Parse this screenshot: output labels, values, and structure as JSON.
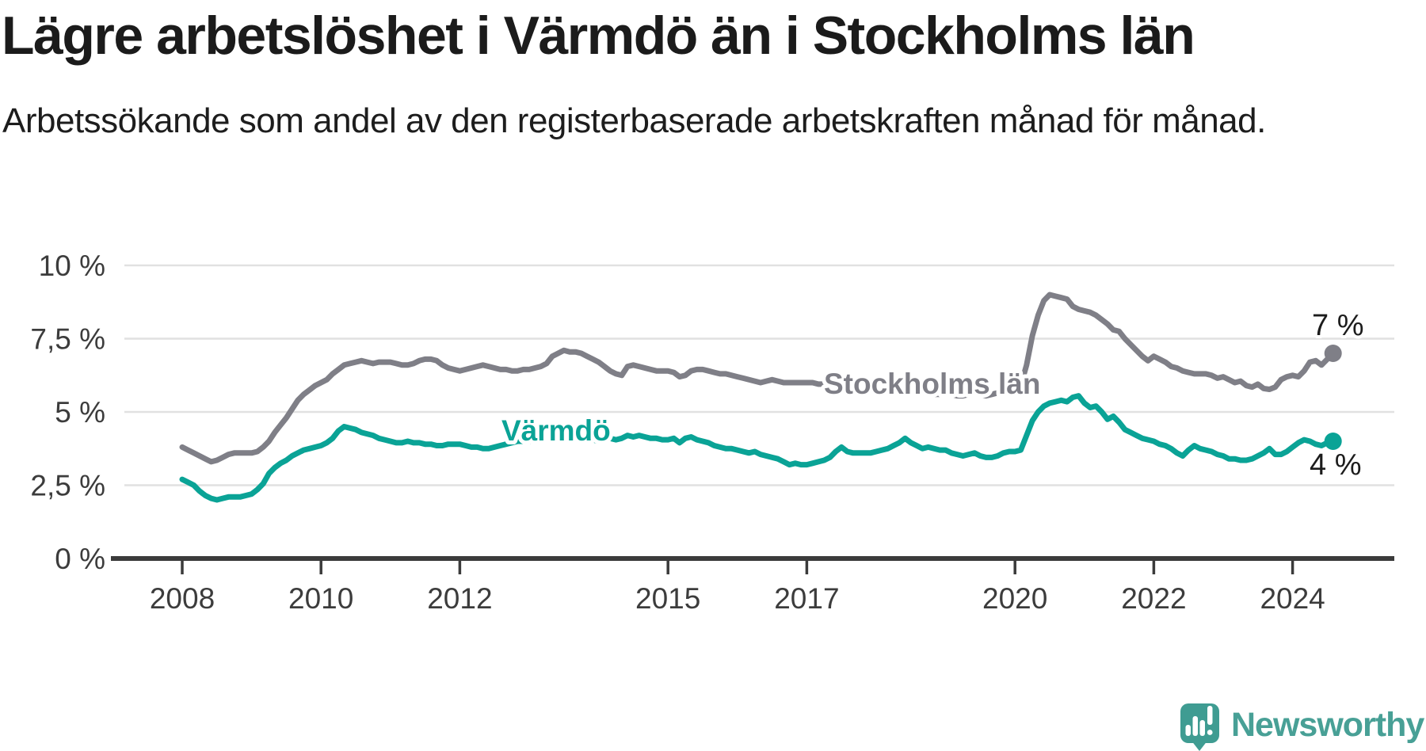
{
  "header": {
    "title": "Lägre arbetslöshet i Värmdö än i Stockholms län",
    "subtitle": "Arbetssökande som andel av den registerbaserade arbetskraften månad för månad."
  },
  "chart_data": {
    "type": "line",
    "unit": "%",
    "title": "Lägre arbetslöshet i Värmdö än i Stockholms län",
    "x_start": {
      "year": 2008,
      "month": 1
    },
    "x_end": {
      "year": 2024,
      "month": 8
    },
    "points_per_year": 12,
    "ylim": [
      0,
      10
    ],
    "grid": "horizontal",
    "legend_position": "inline-labels",
    "yticks": [
      {
        "value": 0,
        "label": "0 %"
      },
      {
        "value": 2.5,
        "label": "2,5 %"
      },
      {
        "value": 5,
        "label": "5 %"
      },
      {
        "value": 7.5,
        "label": "7,5 %"
      },
      {
        "value": 10,
        "label": "10 %"
      }
    ],
    "xticks": [
      {
        "year": 2008,
        "label": "2008"
      },
      {
        "year": 2010,
        "label": "2010"
      },
      {
        "year": 2012,
        "label": "2012"
      },
      {
        "year": 2015,
        "label": "2015"
      },
      {
        "year": 2017,
        "label": "2017"
      },
      {
        "year": 2020,
        "label": "2020"
      },
      {
        "year": 2022,
        "label": "2022"
      },
      {
        "year": 2024,
        "label": "2024"
      }
    ],
    "series": [
      {
        "name": "Stockholms län",
        "color": "#7f7f87",
        "end_label": "7 %",
        "end_value": 7,
        "values": [
          3.8,
          3.7,
          3.6,
          3.5,
          3.4,
          3.3,
          3.35,
          3.45,
          3.55,
          3.6,
          3.6,
          3.6,
          3.6,
          3.65,
          3.8,
          4.0,
          4.3,
          4.55,
          4.8,
          5.1,
          5.4,
          5.6,
          5.75,
          5.9,
          6.0,
          6.1,
          6.3,
          6.45,
          6.6,
          6.65,
          6.7,
          6.75,
          6.7,
          6.65,
          6.7,
          6.7,
          6.7,
          6.65,
          6.6,
          6.6,
          6.65,
          6.75,
          6.8,
          6.8,
          6.75,
          6.6,
          6.5,
          6.45,
          6.4,
          6.45,
          6.5,
          6.55,
          6.6,
          6.55,
          6.5,
          6.45,
          6.45,
          6.4,
          6.4,
          6.45,
          6.45,
          6.5,
          6.55,
          6.65,
          6.9,
          7.0,
          7.1,
          7.05,
          7.05,
          7.0,
          6.9,
          6.8,
          6.7,
          6.55,
          6.4,
          6.3,
          6.25,
          6.55,
          6.6,
          6.55,
          6.5,
          6.45,
          6.4,
          6.4,
          6.4,
          6.35,
          6.2,
          6.25,
          6.4,
          6.45,
          6.45,
          6.4,
          6.35,
          6.3,
          6.3,
          6.25,
          6.2,
          6.15,
          6.1,
          6.05,
          6.0,
          6.05,
          6.1,
          6.05,
          6.0,
          6.0,
          6.0,
          6.0,
          6.0,
          6.0,
          5.95,
          5.95,
          5.95,
          5.9,
          5.9,
          5.85,
          5.85,
          5.8,
          5.8,
          5.8,
          5.8,
          5.75,
          5.75,
          5.8,
          5.85,
          5.8,
          5.75,
          5.7,
          5.65,
          5.65,
          5.6,
          5.6,
          5.65,
          5.6,
          5.55,
          5.55,
          5.6,
          5.65,
          5.6,
          5.55,
          5.6,
          5.65,
          5.7,
          5.75,
          5.8,
          5.9,
          6.6,
          7.6,
          8.3,
          8.8,
          9.0,
          8.95,
          8.9,
          8.85,
          8.6,
          8.5,
          8.45,
          8.4,
          8.3,
          8.15,
          8.0,
          7.8,
          7.75,
          7.5,
          7.3,
          7.1,
          6.9,
          6.75,
          6.9,
          6.8,
          6.7,
          6.55,
          6.5,
          6.4,
          6.35,
          6.3,
          6.3,
          6.3,
          6.25,
          6.15,
          6.2,
          6.1,
          6.0,
          6.05,
          5.9,
          5.85,
          5.95,
          5.8,
          5.77,
          5.85,
          6.1,
          6.2,
          6.25,
          6.2,
          6.4,
          6.7,
          6.75,
          6.6,
          6.8,
          7.0
        ]
      },
      {
        "name": "Värmdö",
        "color": "#0aa396",
        "end_label": "4 %",
        "end_value": 4,
        "values": [
          2.7,
          2.6,
          2.5,
          2.3,
          2.15,
          2.05,
          2.0,
          2.05,
          2.1,
          2.1,
          2.1,
          2.15,
          2.2,
          2.35,
          2.55,
          2.9,
          3.1,
          3.25,
          3.35,
          3.5,
          3.6,
          3.7,
          3.75,
          3.8,
          3.85,
          3.95,
          4.1,
          4.35,
          4.5,
          4.45,
          4.4,
          4.3,
          4.25,
          4.2,
          4.1,
          4.05,
          4.0,
          3.95,
          3.95,
          4.0,
          3.95,
          3.95,
          3.9,
          3.9,
          3.85,
          3.85,
          3.9,
          3.9,
          3.9,
          3.85,
          3.8,
          3.8,
          3.75,
          3.75,
          3.8,
          3.85,
          3.9,
          3.95,
          4.0,
          4.0,
          4.0,
          4.05,
          4.1,
          4.15,
          4.1,
          4.15,
          4.2,
          4.15,
          4.1,
          4.1,
          4.05,
          4.05,
          4.0,
          4.05,
          4.1,
          4.05,
          4.1,
          4.2,
          4.15,
          4.2,
          4.15,
          4.1,
          4.1,
          4.05,
          4.05,
          4.1,
          3.95,
          4.1,
          4.15,
          4.05,
          4.0,
          3.95,
          3.85,
          3.8,
          3.75,
          3.75,
          3.7,
          3.65,
          3.6,
          3.65,
          3.55,
          3.5,
          3.45,
          3.4,
          3.3,
          3.2,
          3.25,
          3.2,
          3.2,
          3.25,
          3.3,
          3.35,
          3.45,
          3.65,
          3.8,
          3.65,
          3.6,
          3.6,
          3.6,
          3.6,
          3.65,
          3.7,
          3.75,
          3.85,
          3.95,
          4.1,
          3.95,
          3.85,
          3.75,
          3.8,
          3.75,
          3.7,
          3.7,
          3.6,
          3.55,
          3.5,
          3.55,
          3.6,
          3.5,
          3.45,
          3.45,
          3.5,
          3.6,
          3.65,
          3.65,
          3.7,
          4.2,
          4.7,
          5.0,
          5.2,
          5.3,
          5.35,
          5.4,
          5.35,
          5.5,
          5.55,
          5.3,
          5.15,
          5.2,
          5.0,
          4.75,
          4.85,
          4.65,
          4.4,
          4.3,
          4.2,
          4.1,
          4.05,
          4.0,
          3.9,
          3.85,
          3.75,
          3.6,
          3.5,
          3.7,
          3.85,
          3.75,
          3.7,
          3.65,
          3.55,
          3.5,
          3.4,
          3.4,
          3.35,
          3.35,
          3.4,
          3.5,
          3.6,
          3.75,
          3.55,
          3.55,
          3.65,
          3.8,
          3.95,
          4.05,
          4.0,
          3.9,
          3.85,
          3.95,
          4.0
        ]
      }
    ],
    "colors": {
      "grid": "#e1e1e1",
      "axis": "#3b3b3b",
      "tick_text": "#3c3c3c",
      "title_text": "#1b1b1b"
    }
  },
  "branding": {
    "logo_text": "Newsworthy",
    "logo_icon": "bar-chart-speech-bubble-icon",
    "logo_text_color": "#48a096",
    "logo_icon_color": "#3f9c92",
    "logo_bar_color": "#ffffff"
  }
}
